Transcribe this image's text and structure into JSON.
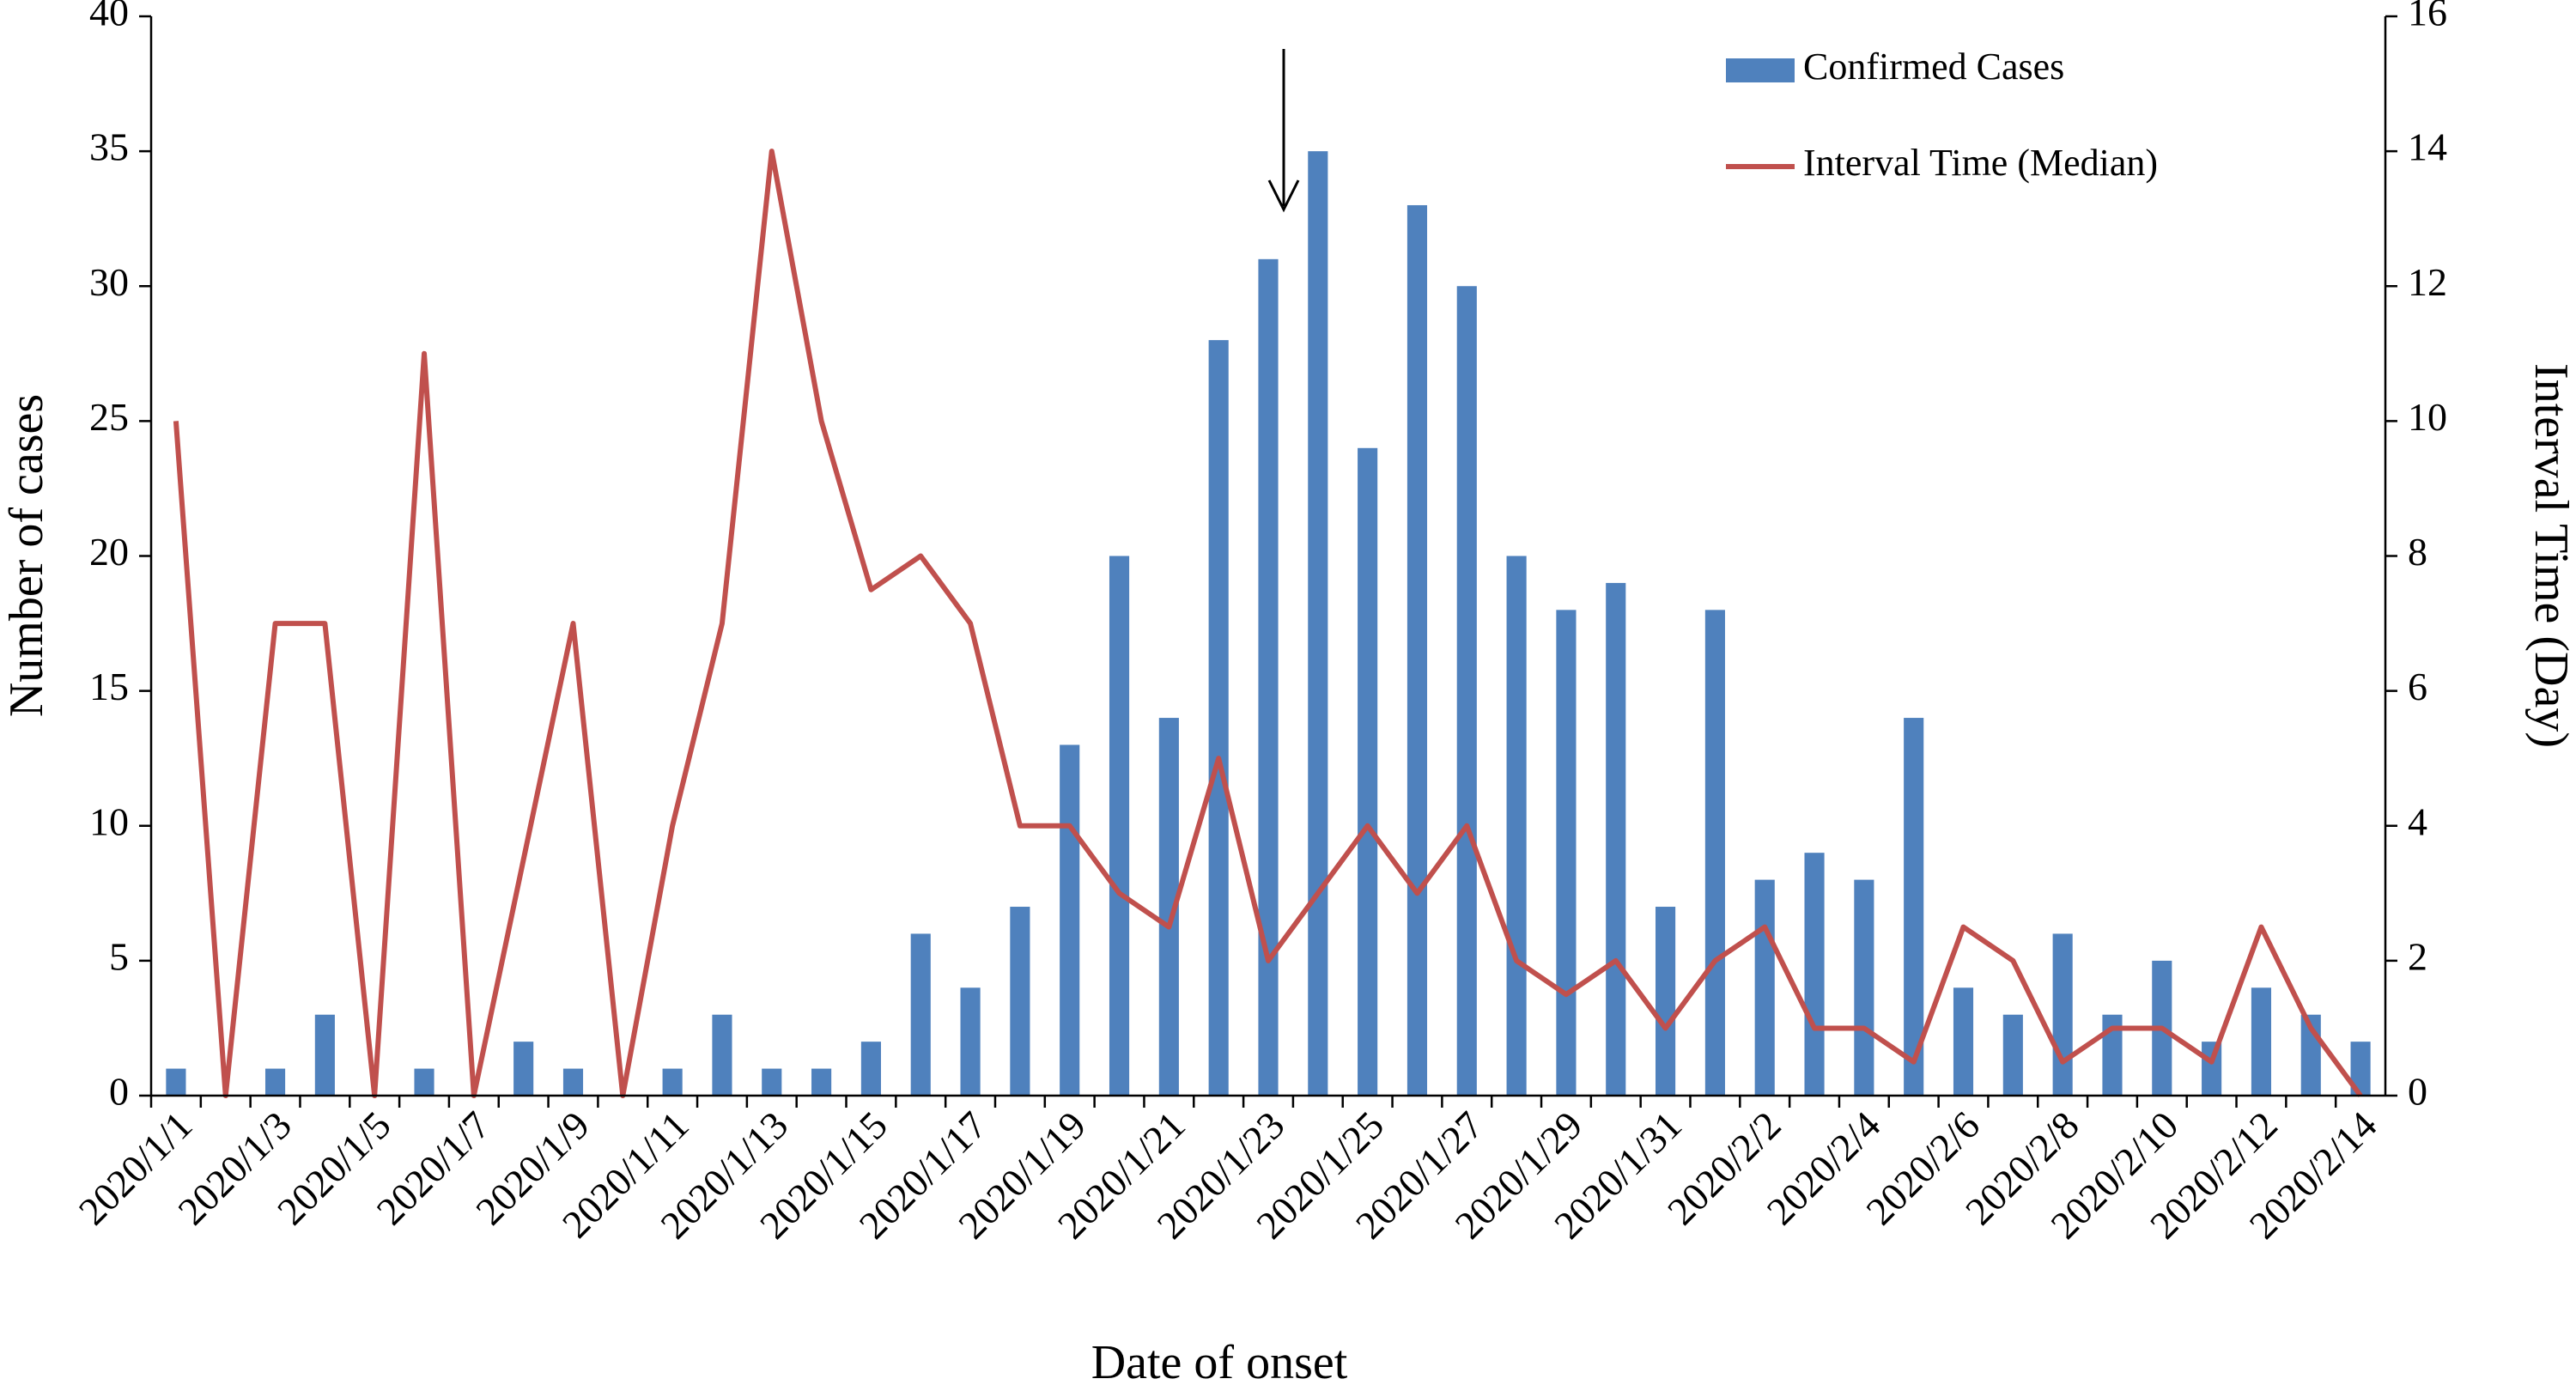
{
  "chart_data": {
    "type": "bar-line",
    "x_label": "Date of onset",
    "y_label": "Number of cases",
    "y2_label": "Interval Time (Day)",
    "categories": [
      "2020/1/1",
      null,
      "2020/1/3",
      null,
      "2020/1/5",
      null,
      "2020/1/7",
      null,
      "2020/1/9",
      null,
      "2020/1/11",
      null,
      "2020/1/13",
      null,
      "2020/1/15",
      null,
      "2020/1/17",
      null,
      "2020/1/19",
      null,
      "2020/1/21",
      null,
      "2020/1/23",
      null,
      "2020/1/25",
      null,
      "2020/1/27",
      null,
      "2020/1/29",
      null,
      "2020/1/31",
      null,
      "2020/2/2",
      null,
      "2020/2/4",
      null,
      "2020/2/6",
      null,
      "2020/2/8",
      null,
      "2020/2/10",
      null,
      "2020/2/12",
      null,
      "2020/2/14"
    ],
    "series": [
      {
        "name": "Confirmed Cases",
        "type": "bar",
        "color": "#4f81bd",
        "values": [
          1,
          0,
          1,
          3,
          0,
          1,
          0,
          2,
          1,
          0,
          1,
          3,
          1,
          1,
          2,
          6,
          4,
          7,
          13,
          20,
          14,
          28,
          31,
          35,
          24,
          33,
          30,
          20,
          18,
          19,
          7,
          18,
          8,
          9,
          8,
          14,
          4,
          3,
          6,
          3,
          5,
          2,
          4,
          3,
          2
        ]
      },
      {
        "name": "Interval Time (Median)",
        "type": "line",
        "axis": "y2",
        "color": "#c0504d",
        "values": [
          10,
          0,
          7,
          7,
          0,
          11,
          0,
          3.5,
          7,
          0,
          4,
          7,
          14,
          10,
          7.5,
          8,
          7,
          4,
          4,
          3,
          2.5,
          5,
          2,
          3,
          4,
          3,
          4,
          2,
          1.5,
          2,
          1,
          2,
          2.5,
          1,
          1,
          0.5,
          2.5,
          2,
          0.5,
          1,
          1,
          0.5,
          2.5,
          1,
          0
        ]
      }
    ],
    "ylim": [
      0,
      40
    ],
    "yticks": [
      0,
      5,
      10,
      15,
      20,
      25,
      30,
      35,
      40
    ],
    "y2lim": [
      0,
      16
    ],
    "y2ticks": [
      0,
      2,
      4,
      6,
      8,
      10,
      12,
      14,
      16
    ],
    "grid": false,
    "legend": "top-right"
  }
}
